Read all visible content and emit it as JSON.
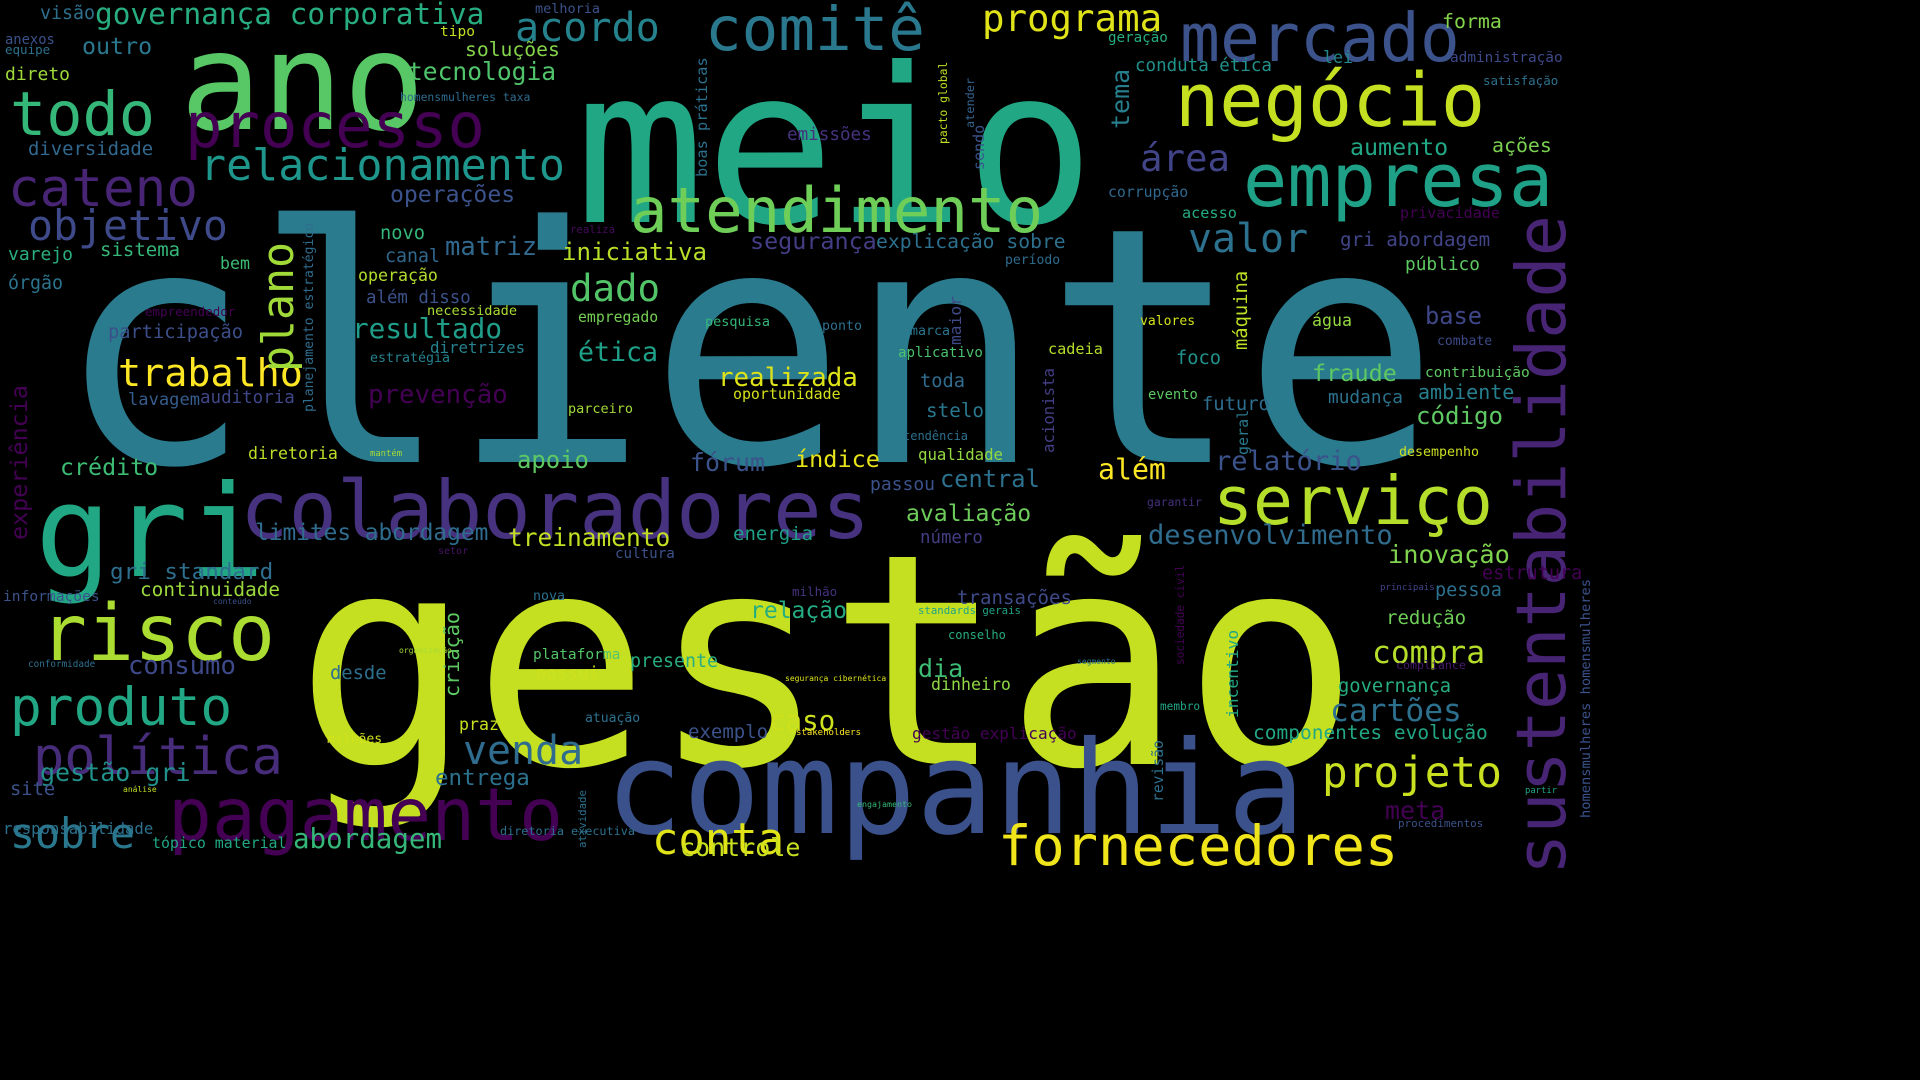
{
  "words": [
    {
      "text": "cliente",
      "color": "#2a7b8e"
    },
    {
      "text": "gestão",
      "color": "#c5e021"
    },
    {
      "text": "meio",
      "color": "#22a785"
    },
    {
      "text": "ano",
      "color": "#58c765"
    },
    {
      "text": "companhia",
      "color": "#3b518b"
    },
    {
      "text": "colaboradores",
      "color": "#46327e"
    },
    {
      "text": "gri",
      "color": "#22a785"
    },
    {
      "text": "sustentabilidade",
      "color": "#482475"
    },
    {
      "text": "processo",
      "color": "#440154"
    },
    {
      "text": "negócio",
      "color": "#c5e021"
    },
    {
      "text": "mercado",
      "color": "#3b528b"
    },
    {
      "text": "empresa",
      "color": "#1fa187"
    },
    {
      "text": "pagamento",
      "color": "#440154"
    },
    {
      "text": "fornecedores",
      "color": "#f0e51a"
    },
    {
      "text": "risco",
      "color": "#aadc32"
    },
    {
      "text": "serviço",
      "color": "#b5de2b"
    },
    {
      "text": "produto",
      "color": "#22a785"
    },
    {
      "text": "política",
      "color": "#472c7a"
    },
    {
      "text": "atendimento",
      "color": "#6ece58"
    },
    {
      "text": "comitê",
      "color": "#2a788e"
    },
    {
      "text": "todo",
      "color": "#35b779"
    },
    {
      "text": "cateno",
      "color": "#482475"
    },
    {
      "text": "relacionamento",
      "color": "#1f968b"
    },
    {
      "text": "projeto",
      "color": "#c8e020"
    },
    {
      "text": "conta",
      "color": "#dfe318"
    },
    {
      "text": "trabalho",
      "color": "#fde725"
    },
    {
      "text": "objetivo",
      "color": "#3e4a89"
    },
    {
      "text": "plano",
      "color": "#a0da39"
    },
    {
      "text": "acordo",
      "color": "#25838e"
    },
    {
      "text": "programa",
      "color": "#dfe318"
    },
    {
      "text": "valor",
      "color": "#2c718e"
    },
    {
      "text": "área",
      "color": "#414487"
    },
    {
      "text": "dado",
      "color": "#52c569"
    },
    {
      "text": "resultado",
      "color": "#1f9e89"
    },
    {
      "text": "sobre",
      "color": "#2a788e"
    },
    {
      "text": "venda",
      "color": "#2f6c8e"
    },
    {
      "text": "governança corporativa",
      "color": "#27ad81"
    },
    {
      "text": "tecnologia",
      "color": "#50c46a"
    },
    {
      "text": "soluções",
      "color": "#84d44b"
    },
    {
      "text": "outro",
      "color": "#2a788e"
    },
    {
      "text": "diversidade",
      "color": "#31688e"
    },
    {
      "text": "operações",
      "color": "#3b528b"
    },
    {
      "text": "matriz",
      "color": "#31688e"
    },
    {
      "text": "iniciativa",
      "color": "#b8de29"
    },
    {
      "text": "segurança",
      "color": "#433e85"
    },
    {
      "text": "explicação sobre",
      "color": "#2d708e"
    },
    {
      "text": "tema",
      "color": "#277f8e"
    },
    {
      "text": "conduta ética",
      "color": "#21918c"
    },
    {
      "text": "emissões",
      "color": "#46327e"
    },
    {
      "text": "boas práticas",
      "color": "#2c718e"
    },
    {
      "text": "pacto global",
      "color": "#c2df23"
    },
    {
      "text": "atender",
      "color": "#33638d"
    },
    {
      "text": "sendo",
      "color": "#3a548c"
    },
    {
      "text": "lei",
      "color": "#23888e"
    },
    {
      "text": "forma",
      "color": "#84d44b"
    },
    {
      "text": "administração",
      "color": "#3e4989"
    },
    {
      "text": "satisfação",
      "color": "#2c718e"
    },
    {
      "text": "aumento",
      "color": "#22a785"
    },
    {
      "text": "ações",
      "color": "#7ad151"
    },
    {
      "text": "corrupção",
      "color": "#31688e"
    },
    {
      "text": "acesso",
      "color": "#25ac82"
    },
    {
      "text": "privacidade",
      "color": "#440154"
    },
    {
      "text": "gri abordagem",
      "color": "#414487"
    },
    {
      "text": "público",
      "color": "#5ec962"
    },
    {
      "text": "ética",
      "color": "#1fa088"
    },
    {
      "text": "visão",
      "color": "#2d708e"
    },
    {
      "text": "melhoria",
      "color": "#3b528b"
    },
    {
      "text": "tipo",
      "color": "#c2df23"
    },
    {
      "text": "anexos",
      "color": "#3b528b"
    },
    {
      "text": "equipe",
      "color": "#2d708e"
    },
    {
      "text": "geração",
      "color": "#27ad81"
    },
    {
      "text": "direto",
      "color": "#9fda3a"
    },
    {
      "text": "homensmulheres taxa",
      "color": "#2f6b8e"
    },
    {
      "text": "varejo",
      "color": "#29af7f"
    },
    {
      "text": "sistema",
      "color": "#35b779"
    },
    {
      "text": "órgão",
      "color": "#2c738e"
    },
    {
      "text": "bem",
      "color": "#3dbc74"
    },
    {
      "text": "planejamento estratégico",
      "color": "#2e6d8e"
    },
    {
      "text": "empreendedor",
      "color": "#440154"
    },
    {
      "text": "operação",
      "color": "#b2dd2d"
    },
    {
      "text": "canal",
      "color": "#31688e"
    },
    {
      "text": "novo",
      "color": "#35b779"
    },
    {
      "text": "realiza",
      "color": "#460a5d"
    },
    {
      "text": "período",
      "color": "#2f6c8e"
    },
    {
      "text": "além disso",
      "color": "#3b528b"
    },
    {
      "text": "necessidade",
      "color": "#a8db34"
    },
    {
      "text": "participação",
      "color": "#3c4f8a"
    },
    {
      "text": "empregado",
      "color": "#75d054"
    },
    {
      "text": "pesquisa",
      "color": "#35b779"
    },
    {
      "text": "ponto",
      "color": "#2d708e"
    },
    {
      "text": "marca",
      "color": "#2b758e"
    },
    {
      "text": "maior",
      "color": "#3e4a89"
    },
    {
      "text": "máquina",
      "color": "#bddf26"
    },
    {
      "text": "valores",
      "color": "#d2e21b"
    },
    {
      "text": "água",
      "color": "#95d840"
    },
    {
      "text": "base",
      "color": "#3f4788"
    },
    {
      "text": "combate",
      "color": "#3e4989"
    },
    {
      "text": "estratégia",
      "color": "#26828e"
    },
    {
      "text": "diretrizes",
      "color": "#26828e"
    },
    {
      "text": "aplicativo",
      "color": "#4ac16d"
    },
    {
      "text": "cadeia",
      "color": "#b5de2b"
    },
    {
      "text": "foco",
      "color": "#21918c"
    },
    {
      "text": "fraude",
      "color": "#5ec962"
    },
    {
      "text": "contribuição",
      "color": "#5ec962"
    },
    {
      "text": "ambiente",
      "color": "#277f8e"
    },
    {
      "text": "prevenção",
      "color": "#440154"
    },
    {
      "text": "realizada",
      "color": "#dde318"
    },
    {
      "text": "toda",
      "color": "#2f6c8e"
    },
    {
      "text": "oportunidade",
      "color": "#d5e21a"
    },
    {
      "text": "acionista",
      "color": "#433e85"
    },
    {
      "text": "evento",
      "color": "#5ac864"
    },
    {
      "text": "futuro",
      "color": "#2e6e8e"
    },
    {
      "text": "mudança",
      "color": "#2c728e"
    },
    {
      "text": "lavagem",
      "color": "#365c8d"
    },
    {
      "text": "auditoria",
      "color": "#3f4788"
    },
    {
      "text": "parceiro",
      "color": "#a2da37"
    },
    {
      "text": "stelo",
      "color": "#2a788e"
    },
    {
      "text": "código",
      "color": "#5ec962"
    },
    {
      "text": "experiência",
      "color": "#440154"
    },
    {
      "text": "tendência",
      "color": "#2d708e"
    },
    {
      "text": "geral",
      "color": "#2a788e"
    },
    {
      "text": "crédito",
      "color": "#3dbc74"
    },
    {
      "text": "diretoria",
      "color": "#bade28"
    },
    {
      "text": "mantém",
      "color": "#a5db36"
    },
    {
      "text": "apoio",
      "color": "#5ec962"
    },
    {
      "text": "fórum",
      "color": "#3b528b"
    },
    {
      "text": "índice",
      "color": "#e7e419"
    },
    {
      "text": "qualidade",
      "color": "#94d841"
    },
    {
      "text": "central",
      "color": "#2c718e"
    },
    {
      "text": "além",
      "color": "#fde725"
    },
    {
      "text": "relatório",
      "color": "#3b528b"
    },
    {
      "text": "desempenho",
      "color": "#ccdf1e"
    },
    {
      "text": "passou",
      "color": "#3b528b"
    },
    {
      "text": "avaliação",
      "color": "#6ccd5a"
    },
    {
      "text": "garantir",
      "color": "#46317e"
    },
    {
      "text": "limites abordagem",
      "color": "#2f6c8e"
    },
    {
      "text": "treinamento",
      "color": "#c2df23"
    },
    {
      "text": "energia",
      "color": "#1fa088"
    },
    {
      "text": "número",
      "color": "#433d84"
    },
    {
      "text": "desenvolvimento",
      "color": "#2f6c8e"
    },
    {
      "text": "inovação",
      "color": "#7fd34e"
    },
    {
      "text": "setor",
      "color": "#471365"
    },
    {
      "text": "cultura",
      "color": "#3b528b"
    },
    {
      "text": "gri standard",
      "color": "#2e6e8e"
    },
    {
      "text": "continuidade",
      "color": "#9bd93c"
    },
    {
      "text": "informações",
      "color": "#3b528b"
    },
    {
      "text": "conteúdo",
      "color": "#3b528b"
    },
    {
      "text": "nova",
      "color": "#2c718e"
    },
    {
      "text": "milhão",
      "color": "#45337d"
    },
    {
      "text": "transações",
      "color": "#3e4a89"
    },
    {
      "text": "sociedade civil",
      "color": "#440154"
    },
    {
      "text": "estrutura",
      "color": "#440154"
    },
    {
      "text": "homensmulheres homensmulheres",
      "color": "#3b528b"
    },
    {
      "text": "relação",
      "color": "#25ac82"
    },
    {
      "text": "standards gerais",
      "color": "#20a386"
    },
    {
      "text": "principais",
      "color": "#414487"
    },
    {
      "text": "pessoa",
      "color": "#2c718e"
    },
    {
      "text": "redução",
      "color": "#6ece58"
    },
    {
      "text": "consumo",
      "color": "#3e4989"
    },
    {
      "text": "incentivo",
      "color": "#22a785"
    },
    {
      "text": "criação",
      "color": "#5ec962"
    },
    {
      "text": "conselho",
      "color": "#27ad81"
    },
    {
      "text": "compra",
      "color": "#b5de2b"
    },
    {
      "text": "conformidade",
      "color": "#2c718e"
    },
    {
      "text": "desde",
      "color": "#2d708e"
    },
    {
      "text": "organização",
      "color": "#a8db34"
    },
    {
      "text": "plataforma",
      "color": "#54c568"
    },
    {
      "text": "possui",
      "color": "#cde11d"
    },
    {
      "text": "presente",
      "color": "#27ad81"
    },
    {
      "text": "dia",
      "color": "#3dbc74"
    },
    {
      "text": "segmento",
      "color": "#2c728e"
    },
    {
      "text": "compliance",
      "color": "#481b6d"
    },
    {
      "text": "dinheiro",
      "color": "#8fd744"
    },
    {
      "text": "segurança cibernética",
      "color": "#dde318"
    },
    {
      "text": "governança",
      "color": "#27ad81"
    },
    {
      "text": "cartões",
      "color": "#2d708e"
    },
    {
      "text": "caso",
      "color": "#cde11d"
    },
    {
      "text": "atuação",
      "color": "#2c718e"
    },
    {
      "text": "prazo",
      "color": "#c8e020"
    },
    {
      "text": "membro",
      "color": "#22a785"
    },
    {
      "text": "milhões",
      "color": "#d2e21b"
    },
    {
      "text": "exemplo",
      "color": "#3b528b"
    },
    {
      "text": "stakeholders",
      "color": "#fde725"
    },
    {
      "text": "gestão explicação",
      "color": "#440154"
    },
    {
      "text": "componentes evolução",
      "color": "#22a785"
    },
    {
      "text": "gestão gri",
      "color": "#21918c"
    },
    {
      "text": "entrega",
      "color": "#2c718e"
    },
    {
      "text": "revisão",
      "color": "#2d708e"
    },
    {
      "text": "site",
      "color": "#3b528b"
    },
    {
      "text": "análise",
      "color": "#c2df23"
    },
    {
      "text": "atividade",
      "color": "#2c718e"
    },
    {
      "text": "meta",
      "color": "#440154"
    },
    {
      "text": "partir",
      "color": "#22a785"
    },
    {
      "text": "engajamento",
      "color": "#35b779"
    },
    {
      "text": "procedimentos",
      "color": "#3b528b"
    },
    {
      "text": "responsabilidade",
      "color": "#2c718e"
    },
    {
      "text": "tópico material",
      "color": "#22a785"
    },
    {
      "text": "abordagem",
      "color": "#35b779"
    },
    {
      "text": "diretoria executiva",
      "color": "#2c718e"
    },
    {
      "text": "controle",
      "color": "#c8e020"
    }
  ]
}
